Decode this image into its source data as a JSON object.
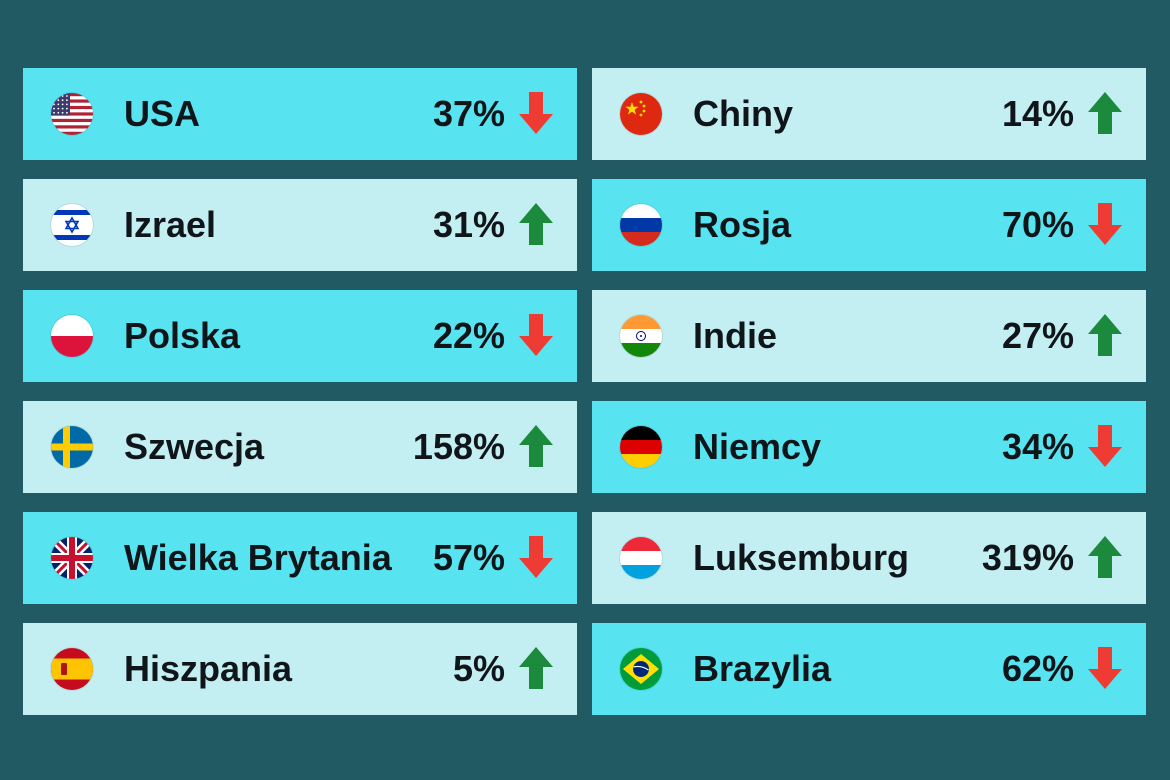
{
  "colors": {
    "up": "#1c8a3c",
    "down": "#ee3b33",
    "bright_card": "#57e4f0",
    "pale_card": "#c3eef2",
    "background": "#215a63"
  },
  "left": [
    {
      "country": "USA",
      "flag": "usa",
      "value": "37%",
      "trend": "down",
      "style": "bright"
    },
    {
      "country": "Izrael",
      "flag": "israel",
      "value": "31%",
      "trend": "up",
      "style": "pale"
    },
    {
      "country": "Polska",
      "flag": "poland",
      "value": "22%",
      "trend": "down",
      "style": "bright"
    },
    {
      "country": "Szwecja",
      "flag": "sweden",
      "value": "158%",
      "trend": "up",
      "style": "pale"
    },
    {
      "country": "Wielka Brytania",
      "flag": "uk",
      "value": "57%",
      "trend": "down",
      "style": "bright"
    },
    {
      "country": "Hiszpania",
      "flag": "spain",
      "value": "5%",
      "trend": "up",
      "style": "pale"
    }
  ],
  "right": [
    {
      "country": "Chiny",
      "flag": "china",
      "value": "14%",
      "trend": "up",
      "style": "pale"
    },
    {
      "country": "Rosja",
      "flag": "russia",
      "value": "70%",
      "trend": "down",
      "style": "bright"
    },
    {
      "country": "Indie",
      "flag": "india",
      "value": "27%",
      "trend": "up",
      "style": "pale"
    },
    {
      "country": "Niemcy",
      "flag": "germany",
      "value": "34%",
      "trend": "down",
      "style": "bright"
    },
    {
      "country": "Luksemburg",
      "flag": "luxembourg",
      "value": "319%",
      "trend": "up",
      "style": "pale"
    },
    {
      "country": "Brazylia",
      "flag": "brazil",
      "value": "62%",
      "trend": "down",
      "style": "bright"
    }
  ]
}
